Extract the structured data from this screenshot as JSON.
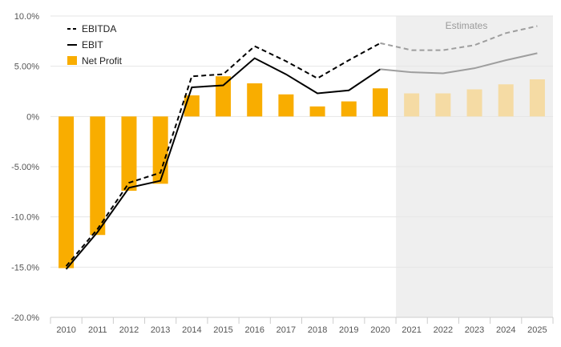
{
  "chart_data": {
    "type": "bar",
    "categories": [
      "2010",
      "2011",
      "2012",
      "2013",
      "2014",
      "2015",
      "2016",
      "2017",
      "2018",
      "2019",
      "2020",
      "2021",
      "2022",
      "2023",
      "2024",
      "2025"
    ],
    "estimate_start_index": 11,
    "estimates_label": "Estimates",
    "ylim": [
      -20,
      10
    ],
    "y_ticks": [
      10,
      5,
      0,
      -5,
      -10,
      -15,
      -20
    ],
    "y_tick_labels": [
      "10.0%",
      "5.00%",
      "0%",
      "-5.00%",
      "-10.0%",
      "-15.0%",
      "-20.0%"
    ],
    "grid": true,
    "legend_position": "top-left",
    "series": [
      {
        "name": "EBITDA",
        "kind": "line",
        "style": "dashed",
        "values": [
          -14.9,
          -11.2,
          -6.6,
          -5.6,
          4.0,
          4.2,
          7.0,
          5.5,
          3.8,
          5.6,
          7.3,
          6.6,
          6.6,
          7.1,
          8.3,
          9.0
        ]
      },
      {
        "name": "EBIT",
        "kind": "line",
        "style": "solid",
        "values": [
          -15.2,
          -11.5,
          -7.1,
          -6.4,
          2.9,
          3.1,
          5.8,
          4.2,
          2.3,
          2.6,
          4.7,
          4.4,
          4.3,
          4.8,
          5.6,
          6.3
        ]
      },
      {
        "name": "Net Profit",
        "kind": "bar",
        "values": [
          -15.1,
          -11.8,
          -7.4,
          -6.7,
          2.1,
          4.0,
          3.3,
          2.2,
          1.0,
          1.5,
          2.8,
          2.3,
          2.3,
          2.7,
          3.2,
          3.7
        ]
      }
    ],
    "colors": {
      "bar": "#f9ad00",
      "bar_estimate": "#f5dba4",
      "ebitda": "#000000",
      "ebit": "#000000",
      "line_estimate": "#9e9e9e",
      "estimate_shade": "#efefef",
      "grid": "#e6e6e6"
    }
  }
}
